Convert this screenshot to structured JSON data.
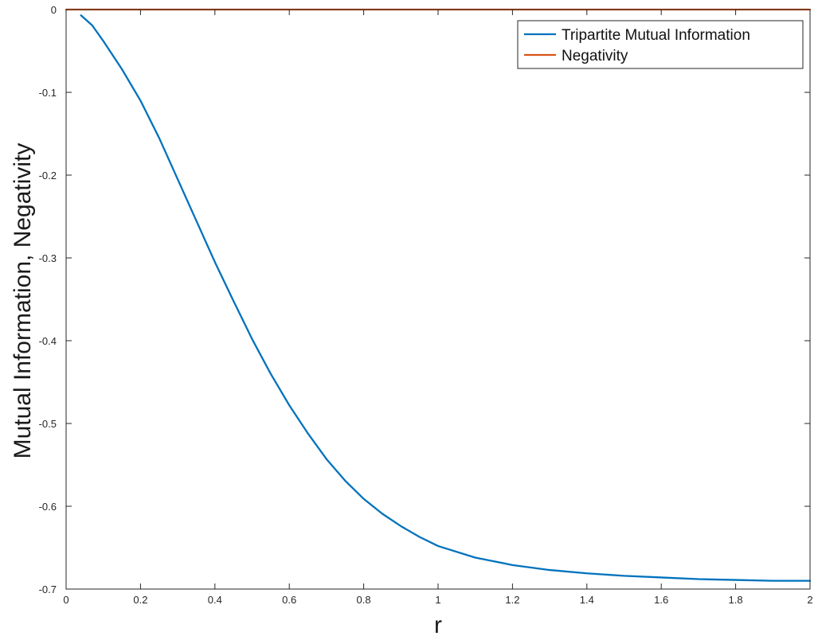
{
  "chart_data": {
    "type": "line",
    "title": "",
    "xlabel": "r",
    "ylabel": "Mutual Information, Negativity",
    "xlim": [
      0,
      2
    ],
    "ylim": [
      -0.7,
      0
    ],
    "xticks": [
      0,
      0.2,
      0.4,
      0.6,
      0.8,
      1,
      1.2,
      1.4,
      1.6,
      1.8,
      2
    ],
    "xtick_labels": [
      "0",
      "0.2",
      "0.4",
      "0.6",
      "0.8",
      "1",
      "1.2",
      "1.4",
      "1.6",
      "1.8",
      "2"
    ],
    "yticks": [
      0,
      -0.1,
      -0.2,
      -0.3,
      -0.4,
      -0.5,
      -0.6,
      -0.7
    ],
    "ytick_labels": [
      "0",
      "-0.1",
      "-0.2",
      "-0.3",
      "-0.4",
      "-0.5",
      "-0.6",
      "-0.7"
    ],
    "grid": false,
    "box": true,
    "legend_position": "top-right",
    "series": [
      {
        "name": "Tripartite Mutual Information",
        "color": "#0072BD",
        "x": [
          0.04,
          0.07,
          0.1,
          0.15,
          0.2,
          0.25,
          0.3,
          0.35,
          0.4,
          0.45,
          0.5,
          0.55,
          0.6,
          0.65,
          0.7,
          0.75,
          0.8,
          0.85,
          0.9,
          0.95,
          1.0,
          1.1,
          1.2,
          1.3,
          1.4,
          1.5,
          1.6,
          1.7,
          1.8,
          1.9,
          2.0
        ],
        "values": [
          -0.007,
          -0.019,
          -0.038,
          -0.072,
          -0.11,
          -0.155,
          -0.205,
          -0.255,
          -0.305,
          -0.352,
          -0.398,
          -0.44,
          -0.478,
          -0.512,
          -0.543,
          -0.569,
          -0.591,
          -0.609,
          -0.624,
          -0.637,
          -0.648,
          -0.662,
          -0.671,
          -0.677,
          -0.681,
          -0.684,
          -0.686,
          -0.688,
          -0.689,
          -0.69,
          -0.69
        ]
      },
      {
        "name": "Negativity",
        "color": "#D95319",
        "x": [
          0,
          2
        ],
        "values": [
          0,
          0
        ]
      }
    ]
  }
}
